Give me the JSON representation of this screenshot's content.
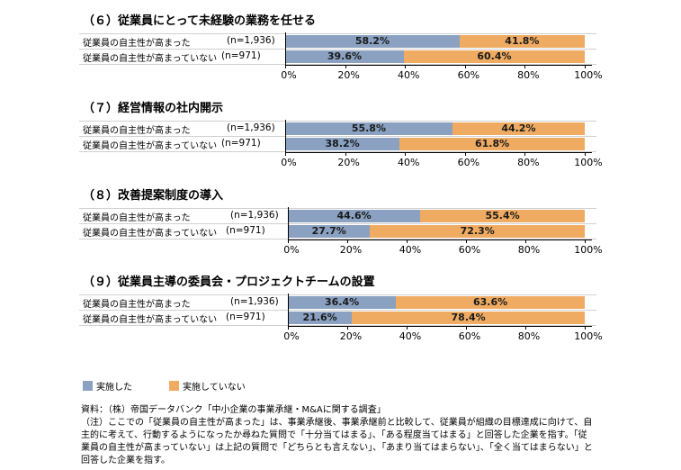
{
  "colors": {
    "implemented": "#8aa1c1",
    "not_implemented": "#f0ab62"
  },
  "legend": [
    {
      "label": "実施した",
      "color": "#8aa1c1"
    },
    {
      "label": "実施していない",
      "color": "#f0ab62"
    }
  ],
  "chart_data": [
    {
      "type": "bar",
      "orientation": "horizontal",
      "stacked": true,
      "title": "（６）従業員にとって未経験の業務を任せる",
      "categories": [
        "従業員の自主性が高まった",
        "従業員の自主性が高まっていない"
      ],
      "n": [
        "(n=1,936)",
        "(n=971)"
      ],
      "series": [
        {
          "name": "実施した",
          "values": [
            58.2,
            39.6
          ]
        },
        {
          "name": "実施していない",
          "values": [
            41.8,
            60.4
          ]
        }
      ],
      "xlim": [
        0,
        100
      ],
      "ticks": [
        "0%",
        "20%",
        "40%",
        "60%",
        "80%",
        "100%"
      ]
    },
    {
      "type": "bar",
      "orientation": "horizontal",
      "stacked": true,
      "title": "（７）経営情報の社内開示",
      "categories": [
        "従業員の自主性が高まった",
        "従業員の自主性が高まっていない"
      ],
      "n": [
        "(n=1,936)",
        "(n=971)"
      ],
      "series": [
        {
          "name": "実施した",
          "values": [
            55.8,
            38.2
          ]
        },
        {
          "name": "実施していない",
          "values": [
            44.2,
            61.8
          ]
        }
      ],
      "xlim": [
        0,
        100
      ],
      "ticks": [
        "0%",
        "20%",
        "40%",
        "60%",
        "80%",
        "100%"
      ]
    },
    {
      "type": "bar",
      "orientation": "horizontal",
      "stacked": true,
      "title": "（８）改善提案制度の導入",
      "categories": [
        "従業員の自主性が高まった",
        "従業員の自主性が高まっていない"
      ],
      "n": [
        "(n=1,936)",
        "(n=971)"
      ],
      "series": [
        {
          "name": "実施した",
          "values": [
            44.6,
            27.7
          ]
        },
        {
          "name": "実施していない",
          "values": [
            55.4,
            72.3
          ]
        }
      ],
      "xlim": [
        0,
        100
      ],
      "ticks": [
        "0%",
        "20%",
        "40%",
        "60%",
        "80%",
        "100%"
      ]
    },
    {
      "type": "bar",
      "orientation": "horizontal",
      "stacked": true,
      "title": "（９）従業員主導の委員会・プロジェクトチームの設置",
      "categories": [
        "従業員の自主性が高まった",
        "従業員の自主性が高まっていない"
      ],
      "n": [
        "(n=1,936)",
        "(n=971)"
      ],
      "series": [
        {
          "name": "実施した",
          "values": [
            36.4,
            21.6
          ]
        },
        {
          "name": "実施していない",
          "values": [
            63.6,
            78.4
          ]
        }
      ],
      "xlim": [
        0,
        100
      ],
      "ticks": [
        "0%",
        "20%",
        "40%",
        "60%",
        "80%",
        "100%"
      ]
    }
  ],
  "notes": {
    "source": "資料：（株）帝国データバンク「中小企業の事業承継・M&Aに関する調査」",
    "note": "（注）ここでの「従業員の自主性が高まった」は、事業承継後、事業承継前と比較して、従業員が組織の目標達成に向けて、自主的に考えて、行動するようになったか尋ねた質問で「十分当てはまる」、「ある程度当てはまる」と回答した企業を指す。「従業員の自主性が高まっていない」は上記の質問で「どちらとも言えない」、「あまり当てはまらない」、「全く当てはまらない」と回答した企業を指す。"
  }
}
